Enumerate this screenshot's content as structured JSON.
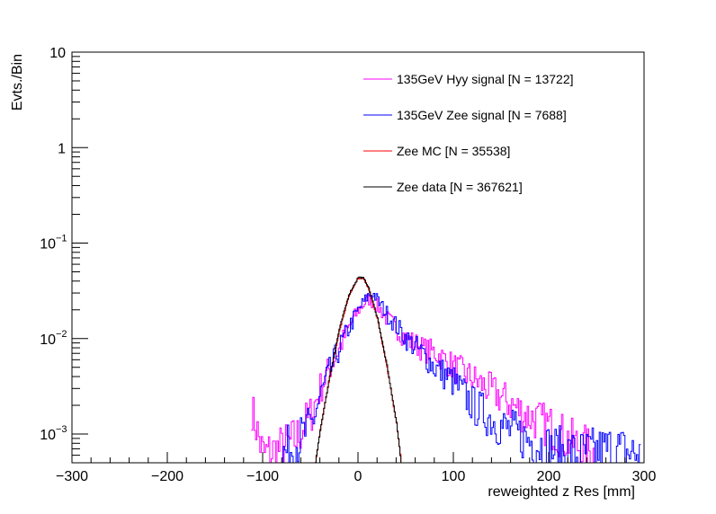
{
  "chart_data": {
    "type": "line",
    "title": "",
    "xlabel": "reweighted z Res [mm]",
    "ylabel": "Evts./Bin",
    "xlim": [
      -300,
      300
    ],
    "ylim": [
      0.0005,
      10
    ],
    "yscale": "log",
    "grid": false,
    "legend_position": "top-right",
    "x_ticks": [
      {
        "value": -300,
        "label": "−300"
      },
      {
        "value": -200,
        "label": "−200"
      },
      {
        "value": -100,
        "label": "−100"
      },
      {
        "value": 0,
        "label": "0"
      },
      {
        "value": 100,
        "label": "100"
      },
      {
        "value": 200,
        "label": "200"
      },
      {
        "value": 300,
        "label": "300"
      }
    ],
    "y_ticks": [
      {
        "value": 10,
        "base": "10",
        "exp": ""
      },
      {
        "value": 1,
        "base": "1",
        "exp": ""
      },
      {
        "value": 0.1,
        "base": "10",
        "exp": "−1"
      },
      {
        "value": 0.01,
        "base": "10",
        "exp": "−2"
      },
      {
        "value": 0.001,
        "base": "10",
        "exp": "−3"
      }
    ],
    "series": [
      {
        "name": "135GeV Hyy signal [N = 13722]",
        "color": "#ff00ff",
        "x": [
          -112,
          -100,
          -80,
          -65,
          -50,
          -40,
          -30,
          -20,
          -10,
          0,
          10,
          20,
          30,
          50,
          70,
          80,
          100,
          120,
          150,
          175,
          200,
          225,
          250
        ],
        "y": [
          0.0018,
          0.0006,
          0.0007,
          0.0009,
          0.0016,
          0.003,
          0.005,
          0.008,
          0.013,
          0.02,
          0.026,
          0.022,
          0.016,
          0.01,
          0.0075,
          0.0072,
          0.005,
          0.0038,
          0.0024,
          0.0016,
          0.0012,
          0.0008,
          0.0006
        ]
      },
      {
        "name": "135GeV Zee signal [N = 7688]",
        "color": "#0000ff",
        "x": [
          -80,
          -65,
          -50,
          -40,
          -30,
          -20,
          -10,
          0,
          10,
          15,
          20,
          30,
          50,
          70,
          80,
          100,
          120,
          150,
          175,
          200,
          230,
          265,
          295
        ],
        "y": [
          0.0006,
          0.0008,
          0.0012,
          0.0025,
          0.0045,
          0.008,
          0.013,
          0.02,
          0.028,
          0.03,
          0.025,
          0.018,
          0.01,
          0.0065,
          0.005,
          0.0035,
          0.002,
          0.0012,
          0.0009,
          0.0007,
          0.0006,
          0.0007,
          0.0006
        ]
      },
      {
        "name": "Zee MC [N = 35538]",
        "color": "#ff0000",
        "x": [
          -45,
          -40,
          -30,
          -20,
          -10,
          0,
          5,
          10,
          20,
          30,
          40,
          45
        ],
        "y": [
          0.0005,
          0.0011,
          0.004,
          0.012,
          0.028,
          0.043,
          0.042,
          0.035,
          0.016,
          0.005,
          0.0013,
          0.0005
        ]
      },
      {
        "name": "Zee data [N = 367621]",
        "color": "#000000",
        "x": [
          -45,
          -40,
          -30,
          -20,
          -10,
          0,
          5,
          10,
          20,
          30,
          40,
          45
        ],
        "y": [
          0.0005,
          0.0011,
          0.0041,
          0.0125,
          0.029,
          0.044,
          0.043,
          0.036,
          0.0165,
          0.0052,
          0.0013,
          0.0005
        ]
      }
    ]
  }
}
